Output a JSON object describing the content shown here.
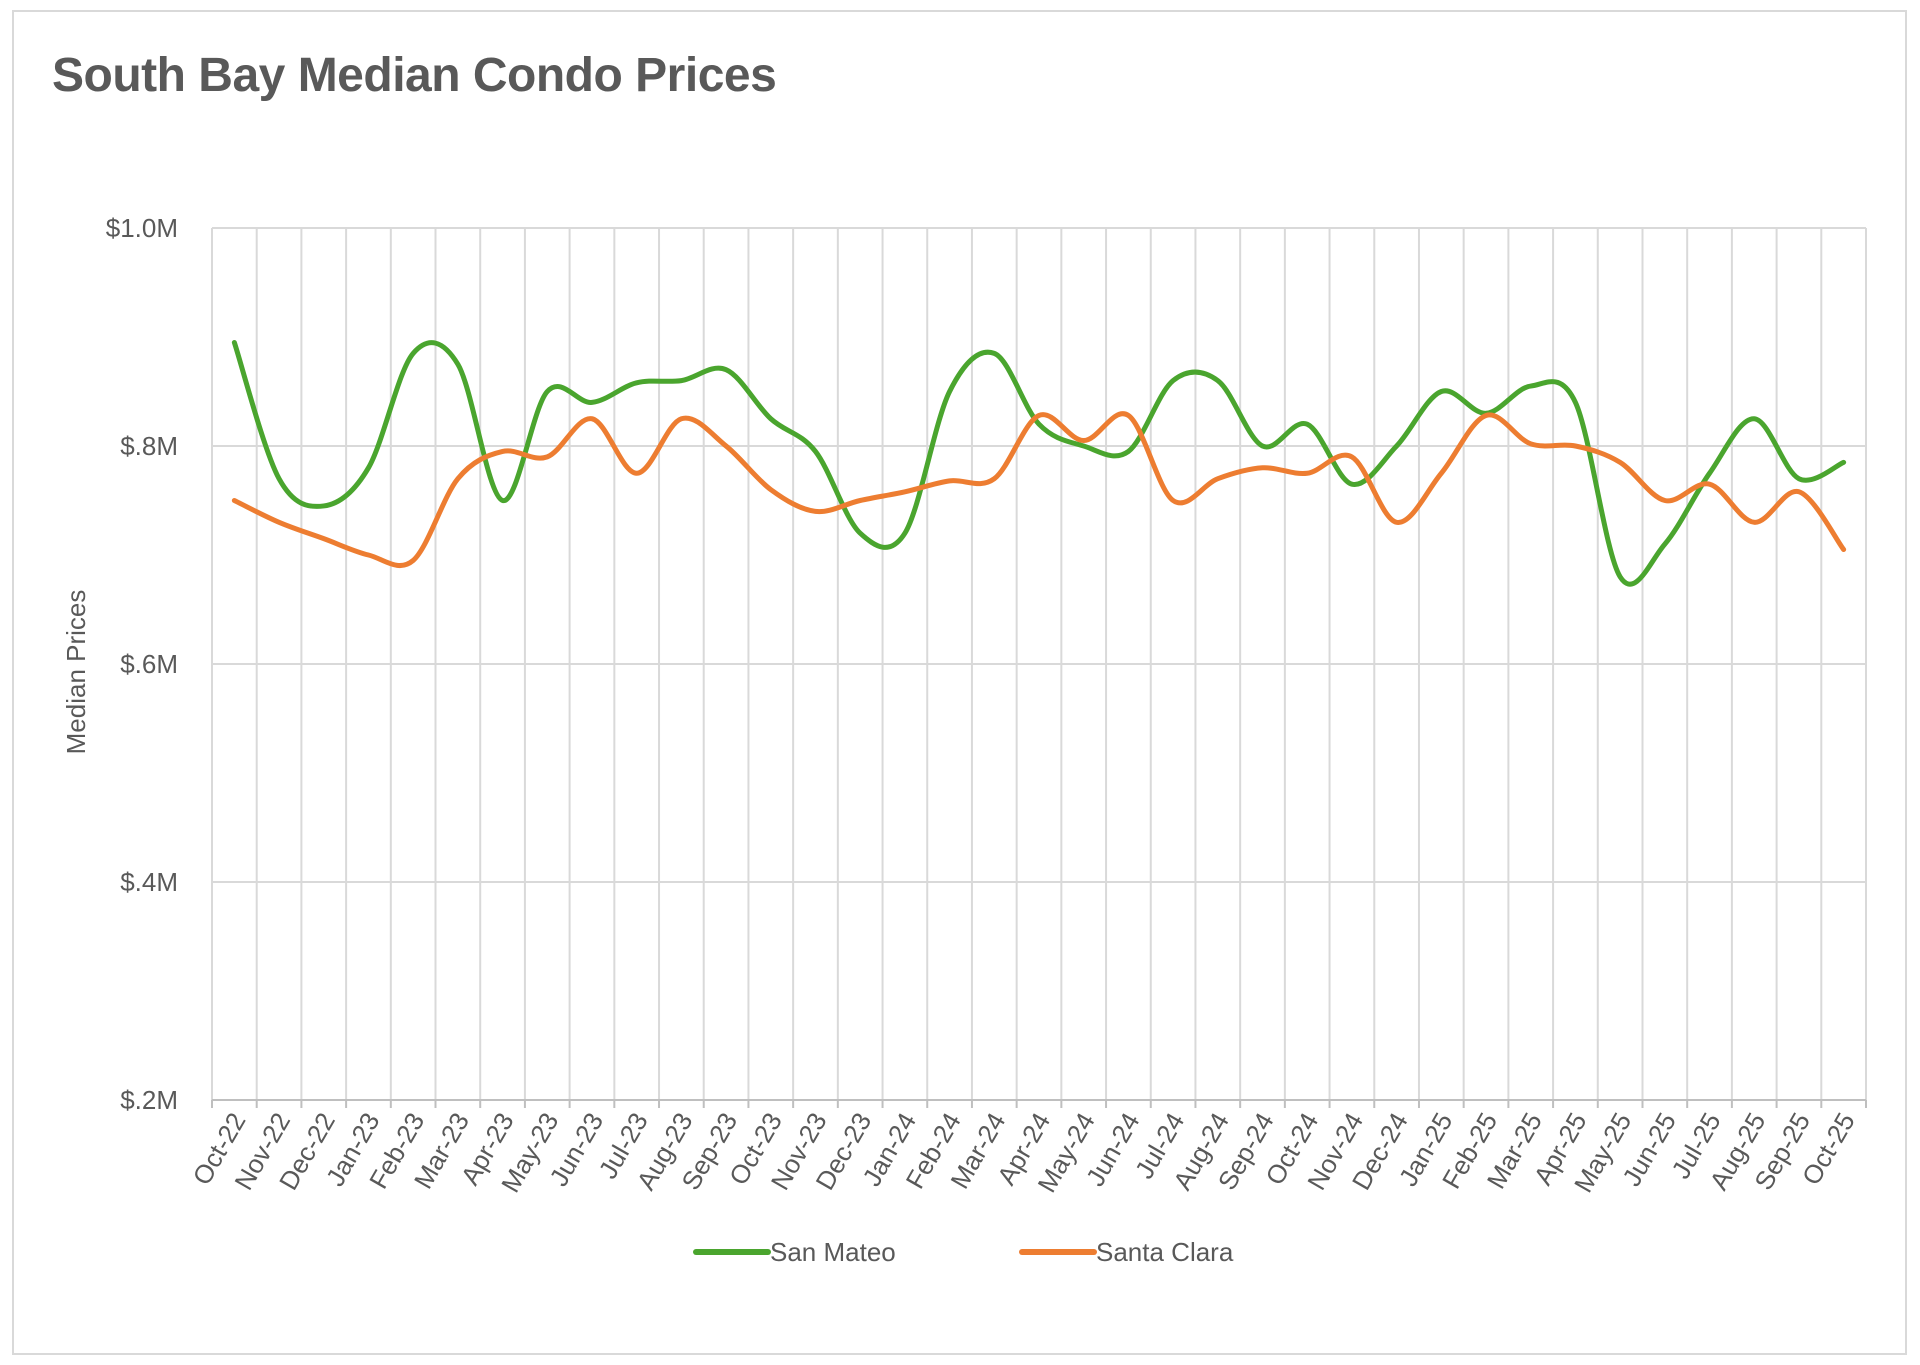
{
  "chart_data": {
    "type": "line",
    "title": "South Bay Median Condo Prices",
    "xlabel": "",
    "ylabel": "Median Prices",
    "ylim": [
      0.2,
      1.0
    ],
    "yticks": [
      0.2,
      0.4,
      0.6,
      0.8,
      1.0
    ],
    "ytick_labels": [
      "$.2M",
      "$.4M",
      "$.6M",
      "$.8M",
      "$1.0M"
    ],
    "grid": true,
    "legend": "bottom",
    "categories": [
      "Oct-22",
      "Nov-22",
      "Dec-22",
      "Jan-23",
      "Feb-23",
      "Mar-23",
      "Apr-23",
      "May-23",
      "Jun-23",
      "Jul-23",
      "Aug-23",
      "Sep-23",
      "Oct-23",
      "Nov-23",
      "Dec-23",
      "Jan-24",
      "Feb-24",
      "Mar-24",
      "Apr-24",
      "May-24",
      "Jun-24",
      "Jul-24",
      "Aug-24",
      "Sep-24",
      "Oct-24",
      "Nov-24",
      "Dec-24",
      "Jan-25",
      "Feb-25",
      "Mar-25",
      "Apr-25",
      "May-25",
      "Jun-25",
      "Jul-25",
      "Aug-25",
      "Sep-25",
      "Oct-25"
    ],
    "series": [
      {
        "name": "San Mateo",
        "color": "#4aa52e",
        "values": [
          0.895,
          0.77,
          0.745,
          0.78,
          0.885,
          0.875,
          0.75,
          0.85,
          0.84,
          0.858,
          0.86,
          0.87,
          0.825,
          0.795,
          0.72,
          0.72,
          0.85,
          0.885,
          0.82,
          0.8,
          0.795,
          0.86,
          0.86,
          0.8,
          0.82,
          0.765,
          0.8,
          0.85,
          0.83,
          0.855,
          0.84,
          0.68,
          0.71,
          0.775,
          0.825,
          0.77,
          0.785
        ]
      },
      {
        "name": "Santa Clara",
        "color": "#ed7d31",
        "values": [
          0.75,
          0.73,
          0.715,
          0.7,
          0.695,
          0.77,
          0.795,
          0.79,
          0.825,
          0.775,
          0.825,
          0.8,
          0.76,
          0.74,
          0.75,
          0.758,
          0.768,
          0.77,
          0.828,
          0.805,
          0.828,
          0.75,
          0.77,
          0.78,
          0.775,
          0.79,
          0.73,
          0.775,
          0.828,
          0.802,
          0.8,
          0.785,
          0.75,
          0.765,
          0.73,
          0.758,
          0.705
        ]
      }
    ]
  }
}
